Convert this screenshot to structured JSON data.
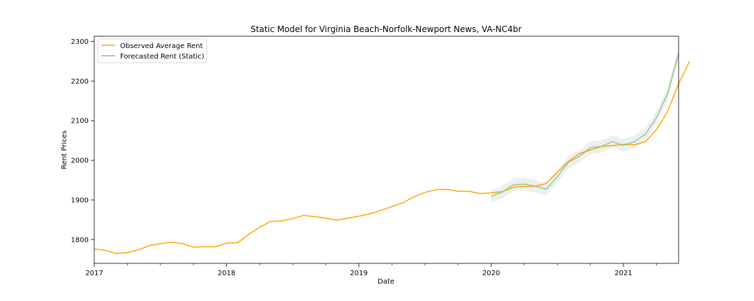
{
  "chart_data": {
    "type": "line",
    "title": "Static Model for Virginia Beach-Norfolk-Newport News, VA-NC4br",
    "xlabel": "Date",
    "ylabel": "Rent Prices",
    "xlim": [
      2017.0,
      2021.4167
    ],
    "ylim": [
      1740,
      2313
    ],
    "x_ticks": [
      {
        "value": 2017,
        "label": "2017"
      },
      {
        "value": 2018,
        "label": "2018"
      },
      {
        "value": 2019,
        "label": "2019"
      },
      {
        "value": 2020,
        "label": "2020"
      },
      {
        "value": 2021,
        "label": "2021"
      }
    ],
    "y_ticks": [
      {
        "value": 1800,
        "label": "1800"
      },
      {
        "value": 1900,
        "label": "1900"
      },
      {
        "value": 2000,
        "label": "2000"
      },
      {
        "value": 2100,
        "label": "2100"
      },
      {
        "value": 2200,
        "label": "2200"
      },
      {
        "value": 2300,
        "label": "2300"
      }
    ],
    "legend_position": "top-left",
    "series": [
      {
        "name": "Observed Average Rent",
        "color": "#FFA500",
        "x_start": 2017.0,
        "step": 0.083333,
        "values": [
          1776,
          1773,
          1765,
          1767,
          1774,
          1785,
          1790,
          1793,
          1790,
          1781,
          1782,
          1782,
          1791,
          1792,
          1813,
          1831,
          1846,
          1847,
          1853,
          1861,
          1858,
          1854,
          1849,
          1854,
          1859,
          1865,
          1874,
          1883,
          1893,
          1908,
          1919,
          1926,
          1927,
          1922,
          1922,
          1916,
          1918,
          1921,
          1932,
          1934,
          1934,
          1942,
          1970,
          1997,
          2017,
          2026,
          2035,
          2037,
          2040,
          2039,
          2047,
          2078,
          2123,
          2193,
          2250
        ]
      },
      {
        "name": "Forecasted Rent (Static)",
        "color": "#7CC47F",
        "x_start": 2020.0,
        "step": 0.083333,
        "values": [
          1909,
          1920,
          1938,
          1940,
          1935,
          1927,
          1959,
          1995,
          2010,
          2032,
          2035,
          2047,
          2038,
          2047,
          2066,
          2108,
          2168,
          2270
        ],
        "ci_halfwidth": 16,
        "ci_color": "#e6e6e6"
      }
    ]
  }
}
